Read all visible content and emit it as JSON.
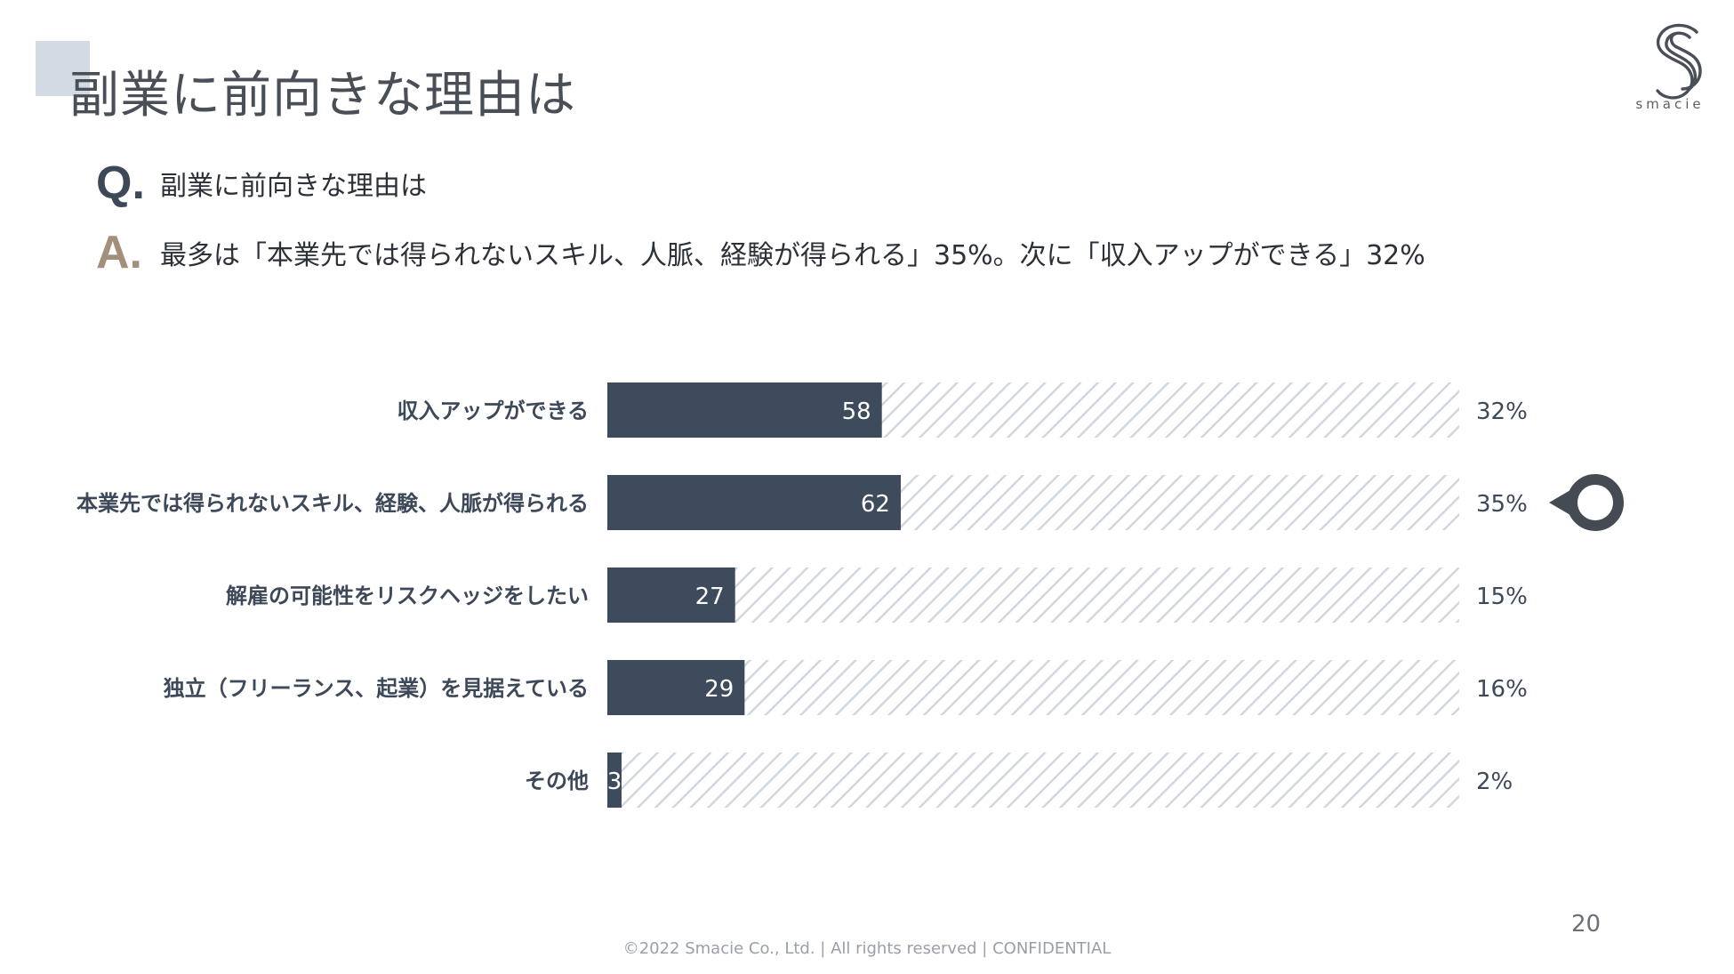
{
  "header": {
    "title": "副業に前向きな理由は",
    "logo_text": "smacie"
  },
  "qa": {
    "q_mark": "Q.",
    "question": "副業に前向きな理由は",
    "a_mark": "A.",
    "answer": "最多は「本業先では得られないスキル、人脈、経験が得られる」35%。次に「収入アップができる」32%"
  },
  "chart_data": {
    "type": "bar",
    "orientation": "horizontal",
    "title": "",
    "categories": [
      "収入アップができる",
      "本業先では得られないスキル、経験、人脈が得られる",
      "解雇の可能性をリスクヘッジをしたい",
      "独立（フリーランス、起業）を見据えている",
      "その他"
    ],
    "values": [
      58,
      62,
      27,
      29,
      3
    ],
    "percent_labels": [
      "32%",
      "35%",
      "15%",
      "16%",
      "2%"
    ],
    "xlim": [
      0,
      180
    ],
    "highlight_index": 1,
    "colors": {
      "bar": "#3d4b5c",
      "track_stripe": "#d2d7de",
      "marker": "#454b53"
    }
  },
  "footer": {
    "copyright": "©2022 Smacie Co., Ltd. | All rights reserved | CONFIDENTIAL",
    "page_number": "20"
  }
}
